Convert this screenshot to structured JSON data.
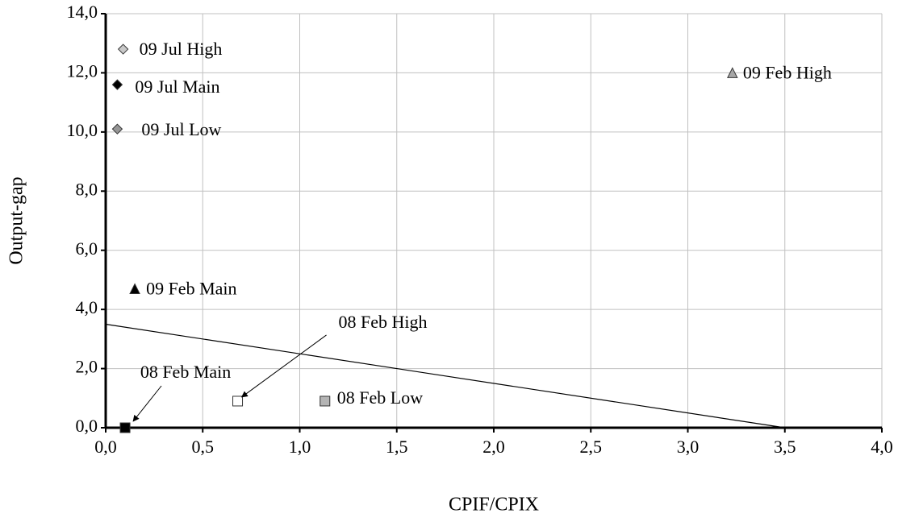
{
  "chart_data": {
    "type": "scatter",
    "xlabel": "CPIF/CPIX",
    "ylabel": "Output-gap",
    "xlim": [
      0,
      4
    ],
    "ylim": [
      0,
      14
    ],
    "xticks": [
      {
        "value": 0,
        "label": "0,0"
      },
      {
        "value": 0.5,
        "label": "0,5"
      },
      {
        "value": 1,
        "label": "1,0"
      },
      {
        "value": 1.5,
        "label": "1,5"
      },
      {
        "value": 2,
        "label": "2,0"
      },
      {
        "value": 2.5,
        "label": "2,5"
      },
      {
        "value": 3,
        "label": "3,0"
      },
      {
        "value": 3.5,
        "label": "3,5"
      },
      {
        "value": 4,
        "label": "4,0"
      }
    ],
    "yticks": [
      {
        "value": 0,
        "label": "0,0"
      },
      {
        "value": 2,
        "label": "2,0"
      },
      {
        "value": 4,
        "label": "4,0"
      },
      {
        "value": 6,
        "label": "6,0"
      },
      {
        "value": 8,
        "label": "8,0"
      },
      {
        "value": 10,
        "label": "10,0"
      },
      {
        "value": 12,
        "label": "12,0"
      },
      {
        "value": 14,
        "label": "14,0"
      }
    ],
    "grid": true,
    "series": [
      {
        "name": "09 Jul High",
        "marker": "diamond",
        "color": "#c8c8c8",
        "x": [
          0.09
        ],
        "values": [
          12.8
        ]
      },
      {
        "name": "09 Jul Main",
        "marker": "diamond",
        "color": "#000000",
        "x": [
          0.06
        ],
        "values": [
          11.6
        ]
      },
      {
        "name": "09 Jul Low",
        "marker": "diamond",
        "color": "#969696",
        "x": [
          0.06
        ],
        "values": [
          10.1
        ]
      },
      {
        "name": "09 Feb High",
        "marker": "triangle",
        "color": "#a6a6a6",
        "x": [
          3.23
        ],
        "values": [
          12.0
        ]
      },
      {
        "name": "09 Feb Main",
        "marker": "triangle",
        "color": "#000000",
        "x": [
          0.15
        ],
        "values": [
          4.7
        ]
      },
      {
        "name": "08 Feb High",
        "marker": "square",
        "color": "#ffffff",
        "x": [
          0.68
        ],
        "values": [
          0.9
        ]
      },
      {
        "name": "08 Feb Low",
        "marker": "square",
        "color": "#b4b4b4",
        "x": [
          1.13
        ],
        "values": [
          0.9
        ]
      },
      {
        "name": "08 Feb Main",
        "marker": "square",
        "color": "#000000",
        "x": [
          0.1
        ],
        "values": [
          0.0
        ]
      }
    ],
    "lines": [
      {
        "color": "#000000",
        "x": [
          0,
          3.5
        ],
        "values": [
          3.5,
          0
        ]
      }
    ]
  }
}
